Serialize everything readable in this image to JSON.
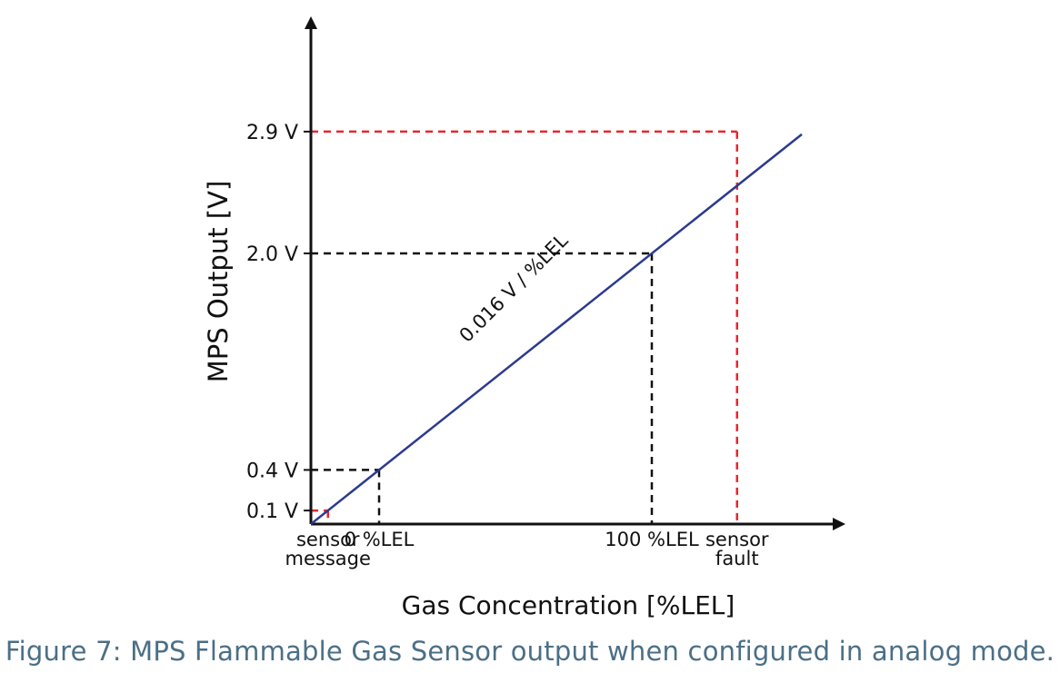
{
  "chart_data": {
    "type": "line",
    "title": "",
    "xlabel": "Gas Concentration [%LEL]",
    "ylabel": "MPS Output [V]",
    "slope_label": "0.016 V / %LEL",
    "series": [
      {
        "x": [
          -25,
          155
        ],
        "y": [
          0.0,
          2.88
        ]
      }
    ],
    "ylim": [
      0,
      3.0
    ],
    "xlim": [
      -25,
      155
    ],
    "y_ticks": [
      {
        "value": 0.1,
        "label": "0.1 V",
        "color": "#e8262d"
      },
      {
        "value": 0.4,
        "label": "0.4 V",
        "color": "#111111"
      },
      {
        "value": 2.0,
        "label": "2.0 V",
        "color": "#111111"
      },
      {
        "value": 2.9,
        "label": "2.9 V",
        "color": "#e8262d"
      }
    ],
    "x_markers": [
      {
        "value": -18.75,
        "lines": [
          "sensor",
          "message"
        ],
        "color": "#e8262d"
      },
      {
        "value": 0,
        "lines": [
          "0 %LEL"
        ],
        "color": "#111111"
      },
      {
        "value": 100,
        "lines": [
          "100 %LEL"
        ],
        "color": "#111111"
      },
      {
        "value": 131.25,
        "lines": [
          "sensor",
          "fault"
        ],
        "color": "#e8262d"
      }
    ],
    "colors": {
      "line": "#2b3a8f",
      "axis": "#111111",
      "caption": "#4b6f86"
    }
  },
  "caption": "Figure 7: MPS Flammable Gas Sensor output when configured in analog mode."
}
